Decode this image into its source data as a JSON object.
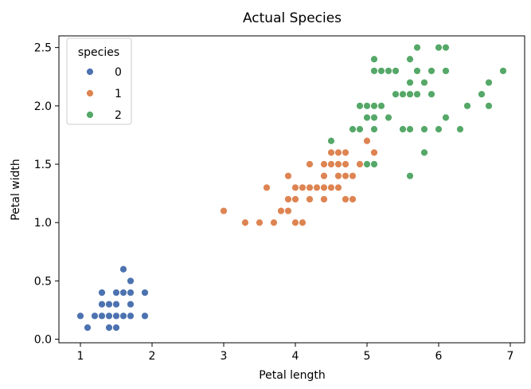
{
  "chart_data": {
    "type": "scatter",
    "title": "Actual Species",
    "xlabel": "Petal length",
    "ylabel": "Petal width",
    "xlim": [
      0.7,
      7.2
    ],
    "ylim": [
      -0.03,
      2.6
    ],
    "xticks": [
      1,
      2,
      3,
      4,
      5,
      6,
      7
    ],
    "yticks": [
      0.0,
      0.5,
      1.0,
      1.5,
      2.0,
      2.5
    ],
    "grid": false,
    "legend": {
      "title": "species",
      "placement": "top-left"
    },
    "series": [
      {
        "name": "0",
        "color": "#4c72b0",
        "points": [
          [
            1.0,
            0.2
          ],
          [
            1.1,
            0.1
          ],
          [
            1.2,
            0.2
          ],
          [
            1.2,
            0.2
          ],
          [
            1.3,
            0.2
          ],
          [
            1.3,
            0.3
          ],
          [
            1.3,
            0.4
          ],
          [
            1.4,
            0.1
          ],
          [
            1.4,
            0.2
          ],
          [
            1.4,
            0.3
          ],
          [
            1.4,
            0.2
          ],
          [
            1.5,
            0.1
          ],
          [
            1.5,
            0.2
          ],
          [
            1.5,
            0.3
          ],
          [
            1.5,
            0.4
          ],
          [
            1.5,
            0.2
          ],
          [
            1.6,
            0.2
          ],
          [
            1.6,
            0.4
          ],
          [
            1.6,
            0.6
          ],
          [
            1.6,
            0.2
          ],
          [
            1.7,
            0.2
          ],
          [
            1.7,
            0.3
          ],
          [
            1.7,
            0.4
          ],
          [
            1.7,
            0.5
          ],
          [
            1.9,
            0.2
          ],
          [
            1.9,
            0.4
          ]
        ]
      },
      {
        "name": "1",
        "color": "#dd8452",
        "points": [
          [
            3.0,
            1.1
          ],
          [
            3.3,
            1.0
          ],
          [
            3.5,
            1.0
          ],
          [
            3.6,
            1.3
          ],
          [
            3.7,
            1.0
          ],
          [
            3.8,
            1.1
          ],
          [
            3.9,
            1.1
          ],
          [
            3.9,
            1.2
          ],
          [
            3.9,
            1.4
          ],
          [
            4.0,
            1.0
          ],
          [
            4.0,
            1.2
          ],
          [
            4.0,
            1.3
          ],
          [
            4.1,
            1.0
          ],
          [
            4.1,
            1.3
          ],
          [
            4.2,
            1.2
          ],
          [
            4.2,
            1.3
          ],
          [
            4.2,
            1.5
          ],
          [
            4.3,
            1.3
          ],
          [
            4.4,
            1.2
          ],
          [
            4.4,
            1.3
          ],
          [
            4.4,
            1.4
          ],
          [
            4.5,
            1.3
          ],
          [
            4.5,
            1.5
          ],
          [
            4.5,
            1.6
          ],
          [
            4.6,
            1.3
          ],
          [
            4.6,
            1.4
          ],
          [
            4.6,
            1.5
          ],
          [
            4.7,
            1.2
          ],
          [
            4.7,
            1.4
          ],
          [
            4.7,
            1.5
          ],
          [
            4.7,
            1.6
          ],
          [
            4.8,
            1.4
          ],
          [
            4.8,
            1.8
          ],
          [
            4.9,
            1.5
          ],
          [
            5.0,
            1.7
          ],
          [
            5.1,
            1.6
          ],
          [
            4.8,
            1.2
          ],
          [
            4.4,
            1.5
          ],
          [
            4.6,
            1.6
          ]
        ]
      },
      {
        "name": "2",
        "color": "#55a868",
        "points": [
          [
            4.5,
            1.7
          ],
          [
            4.8,
            1.8
          ],
          [
            4.9,
            1.8
          ],
          [
            4.9,
            2.0
          ],
          [
            5.0,
            1.5
          ],
          [
            5.0,
            1.9
          ],
          [
            5.0,
            2.0
          ],
          [
            5.1,
            1.5
          ],
          [
            5.1,
            1.8
          ],
          [
            5.1,
            1.9
          ],
          [
            5.1,
            2.0
          ],
          [
            5.1,
            2.3
          ],
          [
            5.1,
            2.4
          ],
          [
            5.2,
            2.0
          ],
          [
            5.2,
            2.3
          ],
          [
            5.3,
            1.9
          ],
          [
            5.3,
            2.3
          ],
          [
            5.4,
            2.1
          ],
          [
            5.4,
            2.3
          ],
          [
            5.5,
            1.8
          ],
          [
            5.5,
            2.1
          ],
          [
            5.6,
            1.4
          ],
          [
            5.6,
            1.8
          ],
          [
            5.6,
            2.1
          ],
          [
            5.6,
            2.2
          ],
          [
            5.6,
            2.4
          ],
          [
            5.7,
            2.1
          ],
          [
            5.7,
            2.3
          ],
          [
            5.7,
            2.5
          ],
          [
            5.8,
            1.6
          ],
          [
            5.8,
            1.8
          ],
          [
            5.8,
            2.2
          ],
          [
            5.9,
            2.1
          ],
          [
            5.9,
            2.3
          ],
          [
            6.0,
            1.8
          ],
          [
            6.0,
            2.5
          ],
          [
            6.1,
            1.9
          ],
          [
            6.1,
            2.3
          ],
          [
            6.1,
            2.5
          ],
          [
            6.3,
            1.8
          ],
          [
            6.4,
            2.0
          ],
          [
            6.6,
            2.1
          ],
          [
            6.7,
            2.0
          ],
          [
            6.7,
            2.2
          ],
          [
            6.9,
            2.3
          ],
          [
            5.4,
            2.3
          ],
          [
            5.2,
            2.3
          ],
          [
            5.5,
            2.1
          ],
          [
            5.0,
            2.0
          ]
        ]
      }
    ]
  }
}
